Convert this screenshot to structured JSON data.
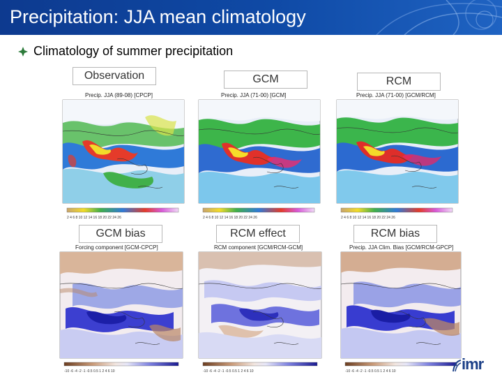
{
  "slide": {
    "title": "Precipitation: JJA mean climatology",
    "subtitle": "Climatology of summer precipitation",
    "logo_text": "imr"
  },
  "columns": [
    {
      "label": "Observation"
    },
    {
      "label": "GCM"
    },
    {
      "label": "RCM"
    },
    {
      "label": "GCM bias"
    },
    {
      "label": "RCM effect"
    },
    {
      "label": "RCM bias"
    }
  ],
  "panels": [
    {
      "title": "Precip. JJA (89-08) [CPCP]",
      "type": "climatology",
      "colorbar": "2 4 6 8 10 12 14 16 18 20 22 24 26"
    },
    {
      "title": "Precip. JJA (71-00) [GCM]",
      "type": "climatology",
      "colorbar": "2 4 6 8 10 12 14 16 18 20 22 24 26"
    },
    {
      "title": "Precip. JJA (71-00) [GCM/RCM]",
      "type": "climatology",
      "colorbar": "2 4 6 8 10 12 14 16 18 20 22 24 26"
    },
    {
      "title": "Forcing component [GCM-CPCP]",
      "type": "bias",
      "colorbar": "-10 -6 -4 -2 -1 -0.5 0.5 1 2 4 6 10"
    },
    {
      "title": "RCM component [GCM/RCM-GCM]",
      "type": "bias",
      "colorbar": "-10 -6 -4 -2 -1 -0.5 0.5 1 2 4 6 10"
    },
    {
      "title": "Precip. JJA Clim. Bias [GCM/RCM-GPCP]",
      "type": "bias",
      "colorbar": "-10 -6 -4 -2 -1 -0.5 0.5 1 2 4 6 10"
    }
  ],
  "colors": {
    "header": "#0f4aa6",
    "bullet": "#2c7a3a"
  }
}
